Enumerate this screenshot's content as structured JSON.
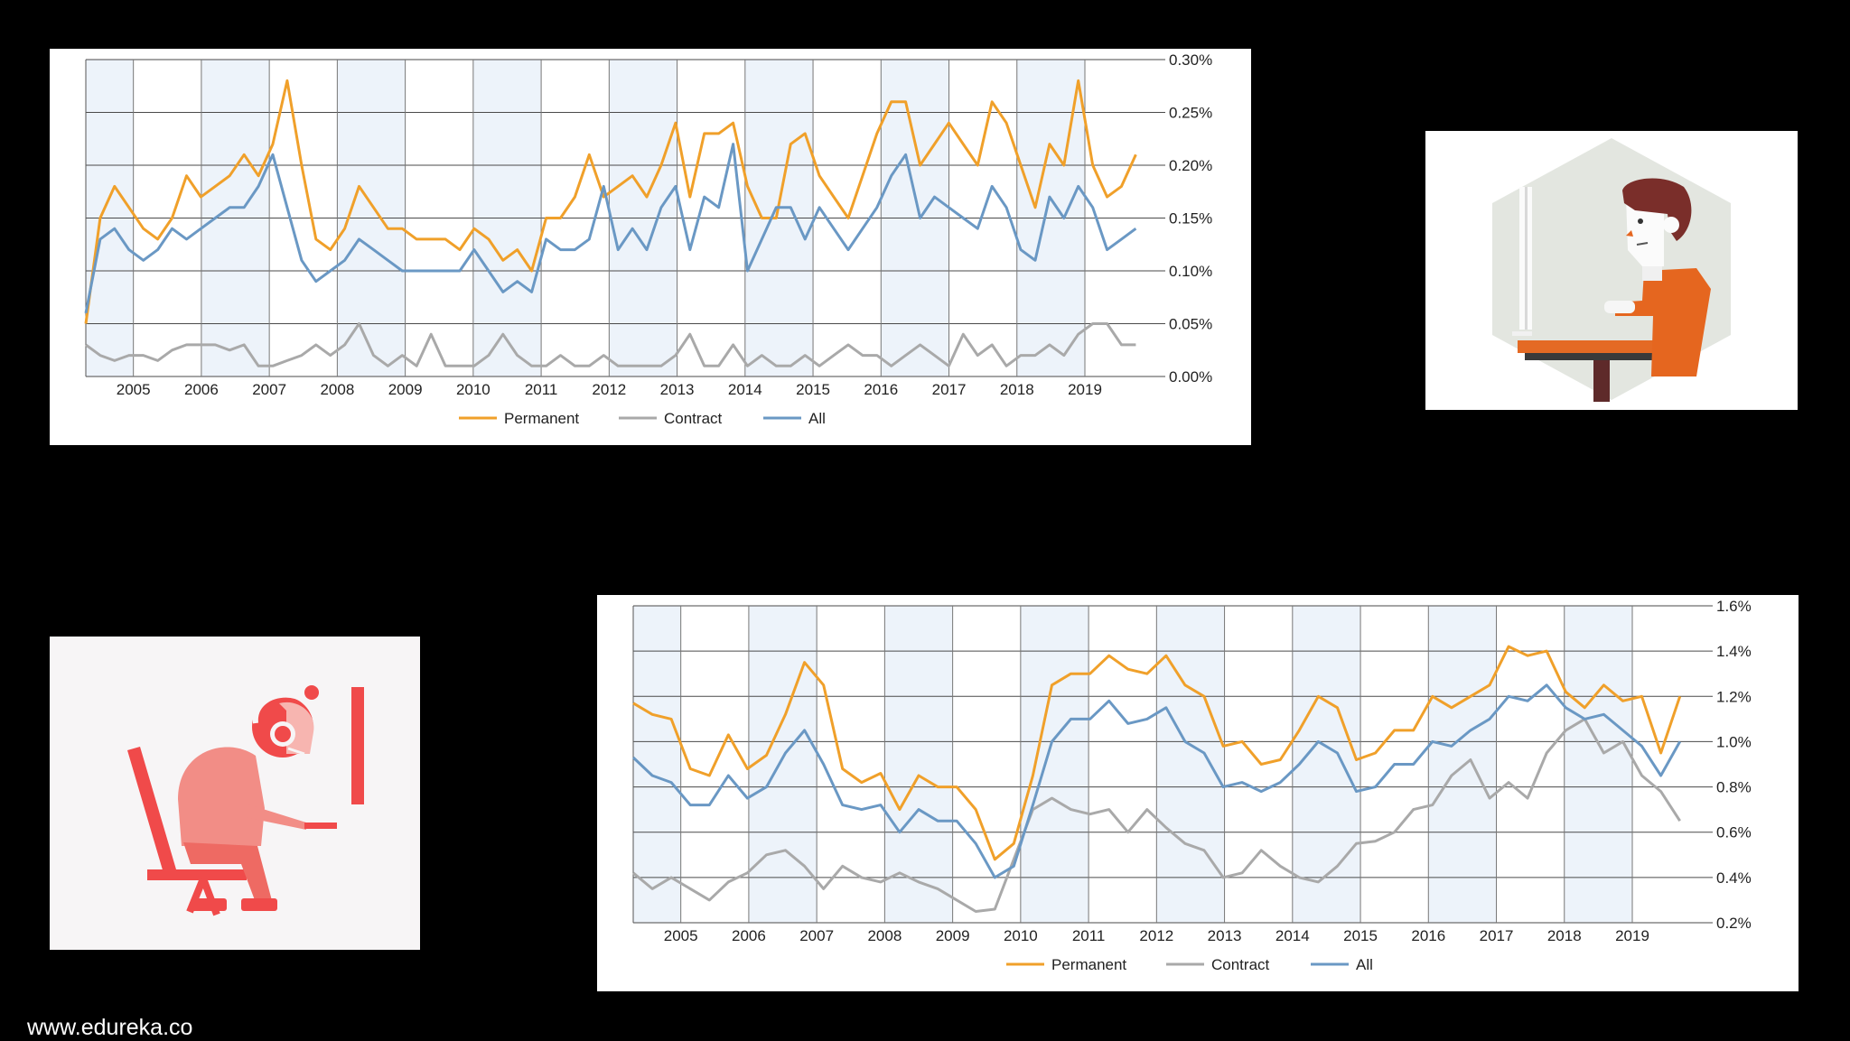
{
  "colors": {
    "permanent": "#f0a02a",
    "contract": "#a9a9a9",
    "all": "#6a98c4",
    "band": "#edf3fa",
    "grid": "#4a4a4a"
  },
  "footer": {
    "text": "www.edureka.co"
  },
  "illustrations": [
    {
      "name": "developer-at-desk-illustration",
      "icon": "person-at-computer"
    },
    {
      "name": "gamer-with-headset-illustration",
      "icon": "person-with-headset"
    }
  ],
  "chart_data": [
    {
      "type": "line",
      "title": "",
      "xlabel": "",
      "ylabel": "",
      "x_start": 2004.3,
      "x_end": 2019.75,
      "xlim": [
        2004.3,
        2020.05
      ],
      "ylim": [
        0,
        0.3
      ],
      "y_ticks": [
        0,
        0.05,
        0.1,
        0.15,
        0.2,
        0.25,
        0.3
      ],
      "y_tick_labels": [
        "0.00%",
        "0.05%",
        "0.10%",
        "0.15%",
        "0.20%",
        "0.25%",
        "0.30%"
      ],
      "x_ticks": [
        2005,
        2006,
        2007,
        2008,
        2009,
        2010,
        2011,
        2012,
        2013,
        2014,
        2015,
        2016,
        2017,
        2018,
        2019
      ],
      "x_tick_labels": [
        "2005",
        "2006",
        "2007",
        "2008",
        "2009",
        "2010",
        "2011",
        "2012",
        "2013",
        "2014",
        "2015",
        "2016",
        "2017",
        "2018",
        "2019"
      ],
      "legend": [
        "Permanent",
        "Contract",
        "All"
      ],
      "legend_position": "bottom-center",
      "series": [
        {
          "name": "Permanent",
          "color": "#f0a02a",
          "values": [
            0.05,
            0.15,
            0.18,
            0.16,
            0.14,
            0.13,
            0.15,
            0.19,
            0.17,
            0.18,
            0.19,
            0.21,
            0.19,
            0.22,
            0.28,
            0.2,
            0.13,
            0.12,
            0.14,
            0.18,
            0.16,
            0.14,
            0.14,
            0.13,
            0.13,
            0.13,
            0.12,
            0.14,
            0.13,
            0.11,
            0.12,
            0.1,
            0.15,
            0.15,
            0.17,
            0.21,
            0.17,
            0.18,
            0.19,
            0.17,
            0.2,
            0.24,
            0.17,
            0.23,
            0.23,
            0.24,
            0.18,
            0.15,
            0.15,
            0.22,
            0.23,
            0.19,
            0.17,
            0.15,
            0.19,
            0.23,
            0.26,
            0.26,
            0.2,
            0.22,
            0.24,
            0.22,
            0.2,
            0.26,
            0.24,
            0.2,
            0.16,
            0.22,
            0.2,
            0.28,
            0.2,
            0.17,
            0.18,
            0.21
          ]
        },
        {
          "name": "Contract",
          "color": "#a9a9a9",
          "values": [
            0.03,
            0.02,
            0.015,
            0.02,
            0.02,
            0.015,
            0.025,
            0.03,
            0.03,
            0.03,
            0.025,
            0.03,
            0.01,
            0.01,
            0.015,
            0.02,
            0.03,
            0.02,
            0.03,
            0.05,
            0.02,
            0.01,
            0.02,
            0.01,
            0.04,
            0.01,
            0.01,
            0.01,
            0.02,
            0.04,
            0.02,
            0.01,
            0.01,
            0.02,
            0.01,
            0.01,
            0.02,
            0.01,
            0.01,
            0.01,
            0.01,
            0.02,
            0.04,
            0.01,
            0.01,
            0.03,
            0.01,
            0.02,
            0.01,
            0.01,
            0.02,
            0.01,
            0.02,
            0.03,
            0.02,
            0.02,
            0.01,
            0.02,
            0.03,
            0.02,
            0.01,
            0.04,
            0.02,
            0.03,
            0.01,
            0.02,
            0.02,
            0.03,
            0.02,
            0.04,
            0.05,
            0.05,
            0.03,
            0.03
          ]
        },
        {
          "name": "All",
          "color": "#6a98c4",
          "values": [
            0.06,
            0.13,
            0.14,
            0.12,
            0.11,
            0.12,
            0.14,
            0.13,
            0.14,
            0.15,
            0.16,
            0.16,
            0.18,
            0.21,
            0.16,
            0.11,
            0.09,
            0.1,
            0.11,
            0.13,
            0.12,
            0.11,
            0.1,
            0.1,
            0.1,
            0.1,
            0.1,
            0.12,
            0.1,
            0.08,
            0.09,
            0.08,
            0.13,
            0.12,
            0.12,
            0.13,
            0.18,
            0.12,
            0.14,
            0.12,
            0.16,
            0.18,
            0.12,
            0.17,
            0.16,
            0.22,
            0.1,
            0.13,
            0.16,
            0.16,
            0.13,
            0.16,
            0.14,
            0.12,
            0.14,
            0.16,
            0.19,
            0.21,
            0.15,
            0.17,
            0.16,
            0.15,
            0.14,
            0.18,
            0.16,
            0.12,
            0.11,
            0.17,
            0.15,
            0.18,
            0.16,
            0.12,
            0.13,
            0.14
          ]
        }
      ]
    },
    {
      "type": "line",
      "title": "",
      "xlabel": "",
      "ylabel": "",
      "x_start": 2004.3,
      "x_end": 2019.7,
      "xlim": [
        2004.3,
        2020.05
      ],
      "ylim": [
        0.2,
        1.6
      ],
      "y_ticks": [
        0.2,
        0.4,
        0.6,
        0.8,
        1.0,
        1.2,
        1.4,
        1.6
      ],
      "y_tick_labels": [
        "0.2%",
        "0.4%",
        "0.6%",
        "0.8%",
        "1.0%",
        "1.2%",
        "1.4%",
        "1.6%"
      ],
      "x_ticks": [
        2005,
        2006,
        2007,
        2008,
        2009,
        2010,
        2011,
        2012,
        2013,
        2014,
        2015,
        2016,
        2017,
        2018,
        2019
      ],
      "x_tick_labels": [
        "2005",
        "2006",
        "2007",
        "2008",
        "2009",
        "2010",
        "2011",
        "2012",
        "2013",
        "2014",
        "2015",
        "2016",
        "2017",
        "2018",
        "2019"
      ],
      "legend": [
        "Permanent",
        "Contract",
        "All"
      ],
      "legend_position": "bottom-center",
      "series": [
        {
          "name": "Permanent",
          "color": "#f0a02a",
          "values": [
            1.17,
            1.12,
            1.1,
            0.88,
            0.85,
            1.03,
            0.88,
            0.94,
            1.12,
            1.35,
            1.25,
            0.88,
            0.82,
            0.86,
            0.7,
            0.85,
            0.8,
            0.8,
            0.7,
            0.48,
            0.55,
            0.85,
            1.25,
            1.3,
            1.3,
            1.38,
            1.32,
            1.3,
            1.38,
            1.25,
            1.2,
            0.98,
            1.0,
            0.9,
            0.92,
            1.05,
            1.2,
            1.15,
            0.92,
            0.95,
            1.05,
            1.05,
            1.2,
            1.15,
            1.2,
            1.25,
            1.42,
            1.38,
            1.4,
            1.22,
            1.15,
            1.25,
            1.18,
            1.2,
            0.95,
            1.2
          ]
        },
        {
          "name": "Contract",
          "color": "#a9a9a9",
          "values": [
            0.42,
            0.35,
            0.4,
            0.35,
            0.3,
            0.38,
            0.42,
            0.5,
            0.52,
            0.45,
            0.35,
            0.45,
            0.4,
            0.38,
            0.42,
            0.38,
            0.35,
            0.3,
            0.25,
            0.26,
            0.48,
            0.7,
            0.75,
            0.7,
            0.68,
            0.7,
            0.6,
            0.7,
            0.62,
            0.55,
            0.52,
            0.4,
            0.42,
            0.52,
            0.45,
            0.4,
            0.38,
            0.45,
            0.55,
            0.56,
            0.6,
            0.7,
            0.72,
            0.85,
            0.92,
            0.75,
            0.82,
            0.75,
            0.95,
            1.05,
            1.1,
            0.95,
            1.0,
            0.85,
            0.78,
            0.65
          ]
        },
        {
          "name": "All",
          "color": "#6a98c4",
          "values": [
            0.93,
            0.85,
            0.82,
            0.72,
            0.72,
            0.85,
            0.75,
            0.8,
            0.95,
            1.05,
            0.9,
            0.72,
            0.7,
            0.72,
            0.6,
            0.7,
            0.65,
            0.65,
            0.55,
            0.4,
            0.45,
            0.72,
            1.0,
            1.1,
            1.1,
            1.18,
            1.08,
            1.1,
            1.15,
            1.0,
            0.95,
            0.8,
            0.82,
            0.78,
            0.82,
            0.9,
            1.0,
            0.95,
            0.78,
            0.8,
            0.9,
            0.9,
            1.0,
            0.98,
            1.05,
            1.1,
            1.2,
            1.18,
            1.25,
            1.15,
            1.1,
            1.12,
            1.05,
            0.98,
            0.85,
            1.0
          ]
        }
      ]
    }
  ]
}
